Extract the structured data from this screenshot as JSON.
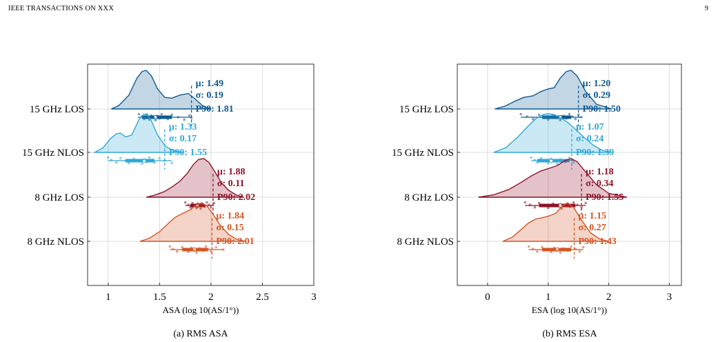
{
  "page": {
    "header": "IEEE TRANSACTIONS ON XXX",
    "page_number": "9"
  },
  "chart_data": [
    {
      "type": "raincloud",
      "caption": "(a) RMS ASA",
      "xlabel": "ASA (log 10(AS/1°))",
      "xlim": [
        0.8,
        3.0
      ],
      "xticks": [
        1,
        1.5,
        2,
        2.5,
        3
      ],
      "xtick_labels": [
        "1",
        "1.5",
        "2",
        "2.5",
        "3"
      ],
      "grid": true,
      "categories": [
        "15 GHz LOS",
        "15 GHz NLOS",
        "8 GHz LOS",
        "8 GHz NLOS"
      ],
      "series": [
        {
          "category": "15 GHz LOS",
          "color": "#0e5a92",
          "mu": 1.49,
          "sigma": 0.19,
          "p90": 1.81,
          "mu_label": "μ: 1.49",
          "sigma_label": "σ: 0.19",
          "p90_label": "P90: 1.81",
          "density_x": [
            1.03,
            1.1,
            1.2,
            1.28,
            1.33,
            1.37,
            1.42,
            1.48,
            1.55,
            1.62,
            1.7,
            1.78,
            1.85,
            1.92,
            2.0
          ],
          "density_y": [
            0.0,
            0.08,
            0.35,
            0.8,
            0.97,
            1.0,
            0.86,
            0.52,
            0.3,
            0.28,
            0.36,
            0.4,
            0.25,
            0.08,
            0.0
          ],
          "box": {
            "min": 1.29,
            "q1": 1.33,
            "median": 1.46,
            "q3": 1.62,
            "max": 1.81
          },
          "points": [
            1.3,
            1.33,
            1.35,
            1.37,
            1.38,
            1.4,
            1.42,
            1.44,
            1.46,
            1.48,
            1.5,
            1.52,
            1.55,
            1.58,
            1.62,
            1.68,
            1.74,
            1.79,
            1.81
          ]
        },
        {
          "category": "15 GHz NLOS",
          "color": "#2ea8d8",
          "mu": 1.33,
          "sigma": 0.17,
          "p90": 1.55,
          "mu_label": "μ: 1.33",
          "sigma_label": "σ: 0.17",
          "p90_label": "P90: 1.55",
          "density_x": [
            0.87,
            0.95,
            1.02,
            1.08,
            1.12,
            1.17,
            1.23,
            1.3,
            1.34,
            1.38,
            1.42,
            1.48,
            1.56,
            1.64,
            1.73
          ],
          "density_y": [
            0.0,
            0.12,
            0.35,
            0.48,
            0.5,
            0.4,
            0.45,
            0.85,
            0.98,
            1.0,
            0.82,
            0.45,
            0.15,
            0.04,
            0.0
          ],
          "box": {
            "min": 1.0,
            "q1": 1.17,
            "median": 1.35,
            "q3": 1.45,
            "max": 1.62
          },
          "points": [
            1.0,
            1.03,
            1.08,
            1.12,
            1.17,
            1.2,
            1.25,
            1.3,
            1.33,
            1.35,
            1.38,
            1.4,
            1.43,
            1.45,
            1.5,
            1.55,
            1.62
          ]
        },
        {
          "category": "8 GHz LOS",
          "color": "#8e1027",
          "mu": 1.88,
          "sigma": 0.11,
          "p90": 2.02,
          "mu_label": "μ: 1.88",
          "sigma_label": "σ: 0.11",
          "p90_label": "P90: 2.02",
          "density_x": [
            1.37,
            1.45,
            1.55,
            1.63,
            1.7,
            1.77,
            1.83,
            1.88,
            1.93,
            1.98,
            2.04,
            2.1,
            2.17,
            2.25,
            2.32
          ],
          "density_y": [
            0.0,
            0.05,
            0.15,
            0.28,
            0.42,
            0.62,
            0.85,
            0.98,
            1.0,
            0.9,
            0.65,
            0.38,
            0.18,
            0.05,
            0.0
          ],
          "box": {
            "min": 1.75,
            "q1": 1.8,
            "median": 1.87,
            "q3": 1.94,
            "max": 2.03
          },
          "points": [
            1.75,
            1.78,
            1.8,
            1.82,
            1.84,
            1.86,
            1.87,
            1.88,
            1.9,
            1.92,
            1.94,
            1.96,
            1.98,
            2.0,
            2.03
          ]
        },
        {
          "category": "8 GHz NLOS",
          "color": "#d45522",
          "mu": 1.84,
          "sigma": 0.15,
          "p90": 2.01,
          "mu_label": "μ: 1.84",
          "sigma_label": "σ: 0.15",
          "p90_label": "P90: 2.01",
          "density_x": [
            1.31,
            1.4,
            1.5,
            1.58,
            1.65,
            1.72,
            1.8,
            1.86,
            1.91,
            1.96,
            2.02,
            2.09,
            2.17,
            2.25,
            2.34
          ],
          "density_y": [
            0.0,
            0.08,
            0.25,
            0.45,
            0.62,
            0.72,
            0.82,
            0.95,
            1.0,
            0.92,
            0.7,
            0.42,
            0.18,
            0.05,
            0.0
          ],
          "box": {
            "min": 1.6,
            "q1": 1.72,
            "median": 1.84,
            "q3": 1.97,
            "max": 2.12
          },
          "points": [
            1.6,
            1.63,
            1.67,
            1.72,
            1.75,
            1.78,
            1.81,
            1.84,
            1.86,
            1.89,
            1.92,
            1.95,
            1.97,
            2.0,
            2.05,
            2.12
          ]
        }
      ]
    },
    {
      "type": "raincloud",
      "caption": "(b) RMS ESA",
      "xlabel": "ESA (log 10(AS/1°))",
      "xlim": [
        -0.5,
        3.2
      ],
      "xticks": [
        0,
        1,
        2,
        3
      ],
      "xtick_labels": [
        "0",
        "1",
        "2",
        "3"
      ],
      "grid": true,
      "categories": [
        "15 GHz LOS",
        "15 GHz NLOS",
        "8 GHz LOS",
        "8 GHz NLOS"
      ],
      "series": [
        {
          "category": "15 GHz LOS",
          "color": "#0e5a92",
          "mu": 1.2,
          "sigma": 0.29,
          "p90": 1.5,
          "mu_label": "μ: 1.20",
          "sigma_label": "σ: 0.29",
          "p90_label": "P90: 1.50",
          "density_x": [
            0.12,
            0.3,
            0.45,
            0.6,
            0.75,
            0.88,
            1.0,
            1.1,
            1.2,
            1.3,
            1.38,
            1.48,
            1.62,
            1.8,
            2.05
          ],
          "density_y": [
            0.0,
            0.08,
            0.2,
            0.3,
            0.34,
            0.45,
            0.52,
            0.55,
            0.8,
            0.97,
            1.0,
            0.85,
            0.45,
            0.12,
            0.0
          ],
          "box": {
            "min": 0.55,
            "q1": 0.9,
            "median": 1.2,
            "q3": 1.38,
            "max": 1.55
          },
          "points": [
            0.55,
            0.65,
            0.75,
            0.85,
            0.92,
            1.0,
            1.08,
            1.15,
            1.2,
            1.25,
            1.3,
            1.35,
            1.4,
            1.45,
            1.5,
            1.55
          ]
        },
        {
          "category": "15 GHz NLOS",
          "color": "#2ea8d8",
          "mu": 1.07,
          "sigma": 0.24,
          "p90": 1.39,
          "mu_label": "μ: 1.07",
          "sigma_label": "σ: 0.24",
          "p90_label": "P90: 1.39",
          "density_x": [
            0.1,
            0.3,
            0.5,
            0.65,
            0.8,
            0.92,
            1.0,
            1.1,
            1.2,
            1.32,
            1.45,
            1.6,
            1.75,
            1.9,
            2.05
          ],
          "density_y": [
            0.0,
            0.12,
            0.4,
            0.65,
            0.88,
            0.98,
            1.0,
            0.98,
            0.9,
            0.78,
            0.6,
            0.38,
            0.18,
            0.05,
            0.0
          ],
          "box": {
            "min": 0.72,
            "q1": 0.82,
            "median": 1.05,
            "q3": 1.35,
            "max": 1.42
          },
          "points": [
            0.72,
            0.78,
            0.82,
            0.88,
            0.95,
            1.0,
            1.05,
            1.1,
            1.15,
            1.2,
            1.28,
            1.35,
            1.4,
            1.42
          ]
        },
        {
          "category": "8 GHz LOS",
          "color": "#8e1027",
          "mu": 1.18,
          "sigma": 0.34,
          "p90": 1.55,
          "mu_label": "μ: 1.18",
          "sigma_label": "σ: 0.34",
          "p90_label": "P90: 1.55",
          "density_x": [
            -0.15,
            0.1,
            0.35,
            0.55,
            0.72,
            0.88,
            1.02,
            1.15,
            1.28,
            1.38,
            1.48,
            1.62,
            1.8,
            2.0,
            2.3
          ],
          "density_y": [
            0.0,
            0.06,
            0.2,
            0.38,
            0.55,
            0.68,
            0.75,
            0.82,
            0.95,
            1.0,
            0.92,
            0.65,
            0.32,
            0.1,
            0.0
          ],
          "box": {
            "min": 0.62,
            "q1": 0.85,
            "median": 1.2,
            "q3": 1.45,
            "max": 1.62
          },
          "points": [
            0.62,
            0.7,
            0.78,
            0.85,
            0.92,
            1.0,
            1.08,
            1.15,
            1.22,
            1.3,
            1.36,
            1.42,
            1.48,
            1.55,
            1.62
          ]
        },
        {
          "category": "8 GHz NLOS",
          "color": "#d45522",
          "mu": 1.15,
          "sigma": 0.27,
          "p90": 1.43,
          "mu_label": "μ: 1.15",
          "sigma_label": "σ: 0.27",
          "p90_label": "P90: 1.43",
          "density_x": [
            0.25,
            0.4,
            0.55,
            0.68,
            0.8,
            0.92,
            1.02,
            1.12,
            1.22,
            1.32,
            1.42,
            1.55,
            1.7,
            1.85,
            2.0
          ],
          "density_y": [
            0.0,
            0.1,
            0.3,
            0.48,
            0.58,
            0.62,
            0.66,
            0.72,
            0.9,
            1.0,
            0.88,
            0.55,
            0.22,
            0.06,
            0.0
          ],
          "box": {
            "min": 0.68,
            "q1": 0.9,
            "median": 1.15,
            "q3": 1.38,
            "max": 1.58
          },
          "points": [
            0.68,
            0.75,
            0.82,
            0.9,
            0.98,
            1.05,
            1.1,
            1.15,
            1.2,
            1.25,
            1.32,
            1.38,
            1.45,
            1.52,
            1.58
          ]
        }
      ]
    }
  ]
}
